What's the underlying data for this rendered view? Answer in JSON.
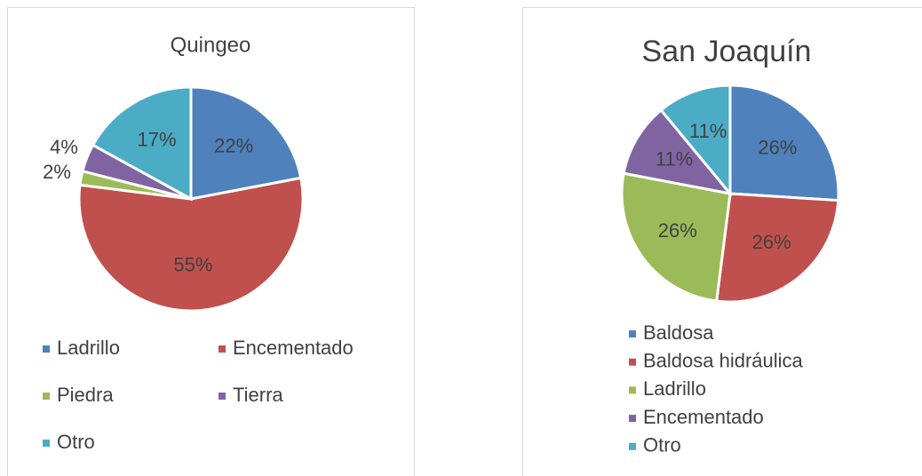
{
  "chart_data": [
    {
      "type": "pie",
      "title": "Quingeo",
      "categories": [
        "Ladrillo",
        "Encementado",
        "Piedra",
        "Tierra",
        "Otro"
      ],
      "values": [
        22,
        55,
        2,
        4,
        17
      ],
      "value_labels": [
        "22%",
        "55%",
        "2%",
        "4%",
        "17%"
      ],
      "colors": [
        "#4f81bd",
        "#c0504d",
        "#9bbb59",
        "#8064a2",
        "#4bacc6"
      ]
    },
    {
      "type": "pie",
      "title": "San Joaquín",
      "categories": [
        "Baldosa",
        "Baldosa hidráulica",
        "Ladrillo",
        "Encementado",
        "Otro"
      ],
      "values": [
        26,
        26,
        26,
        11,
        11
      ],
      "value_labels": [
        "26%",
        "26%",
        "26%",
        "11%",
        "11%"
      ],
      "colors": [
        "#4f81bd",
        "#c0504d",
        "#9bbb59",
        "#8064a2",
        "#4bacc6"
      ]
    }
  ]
}
